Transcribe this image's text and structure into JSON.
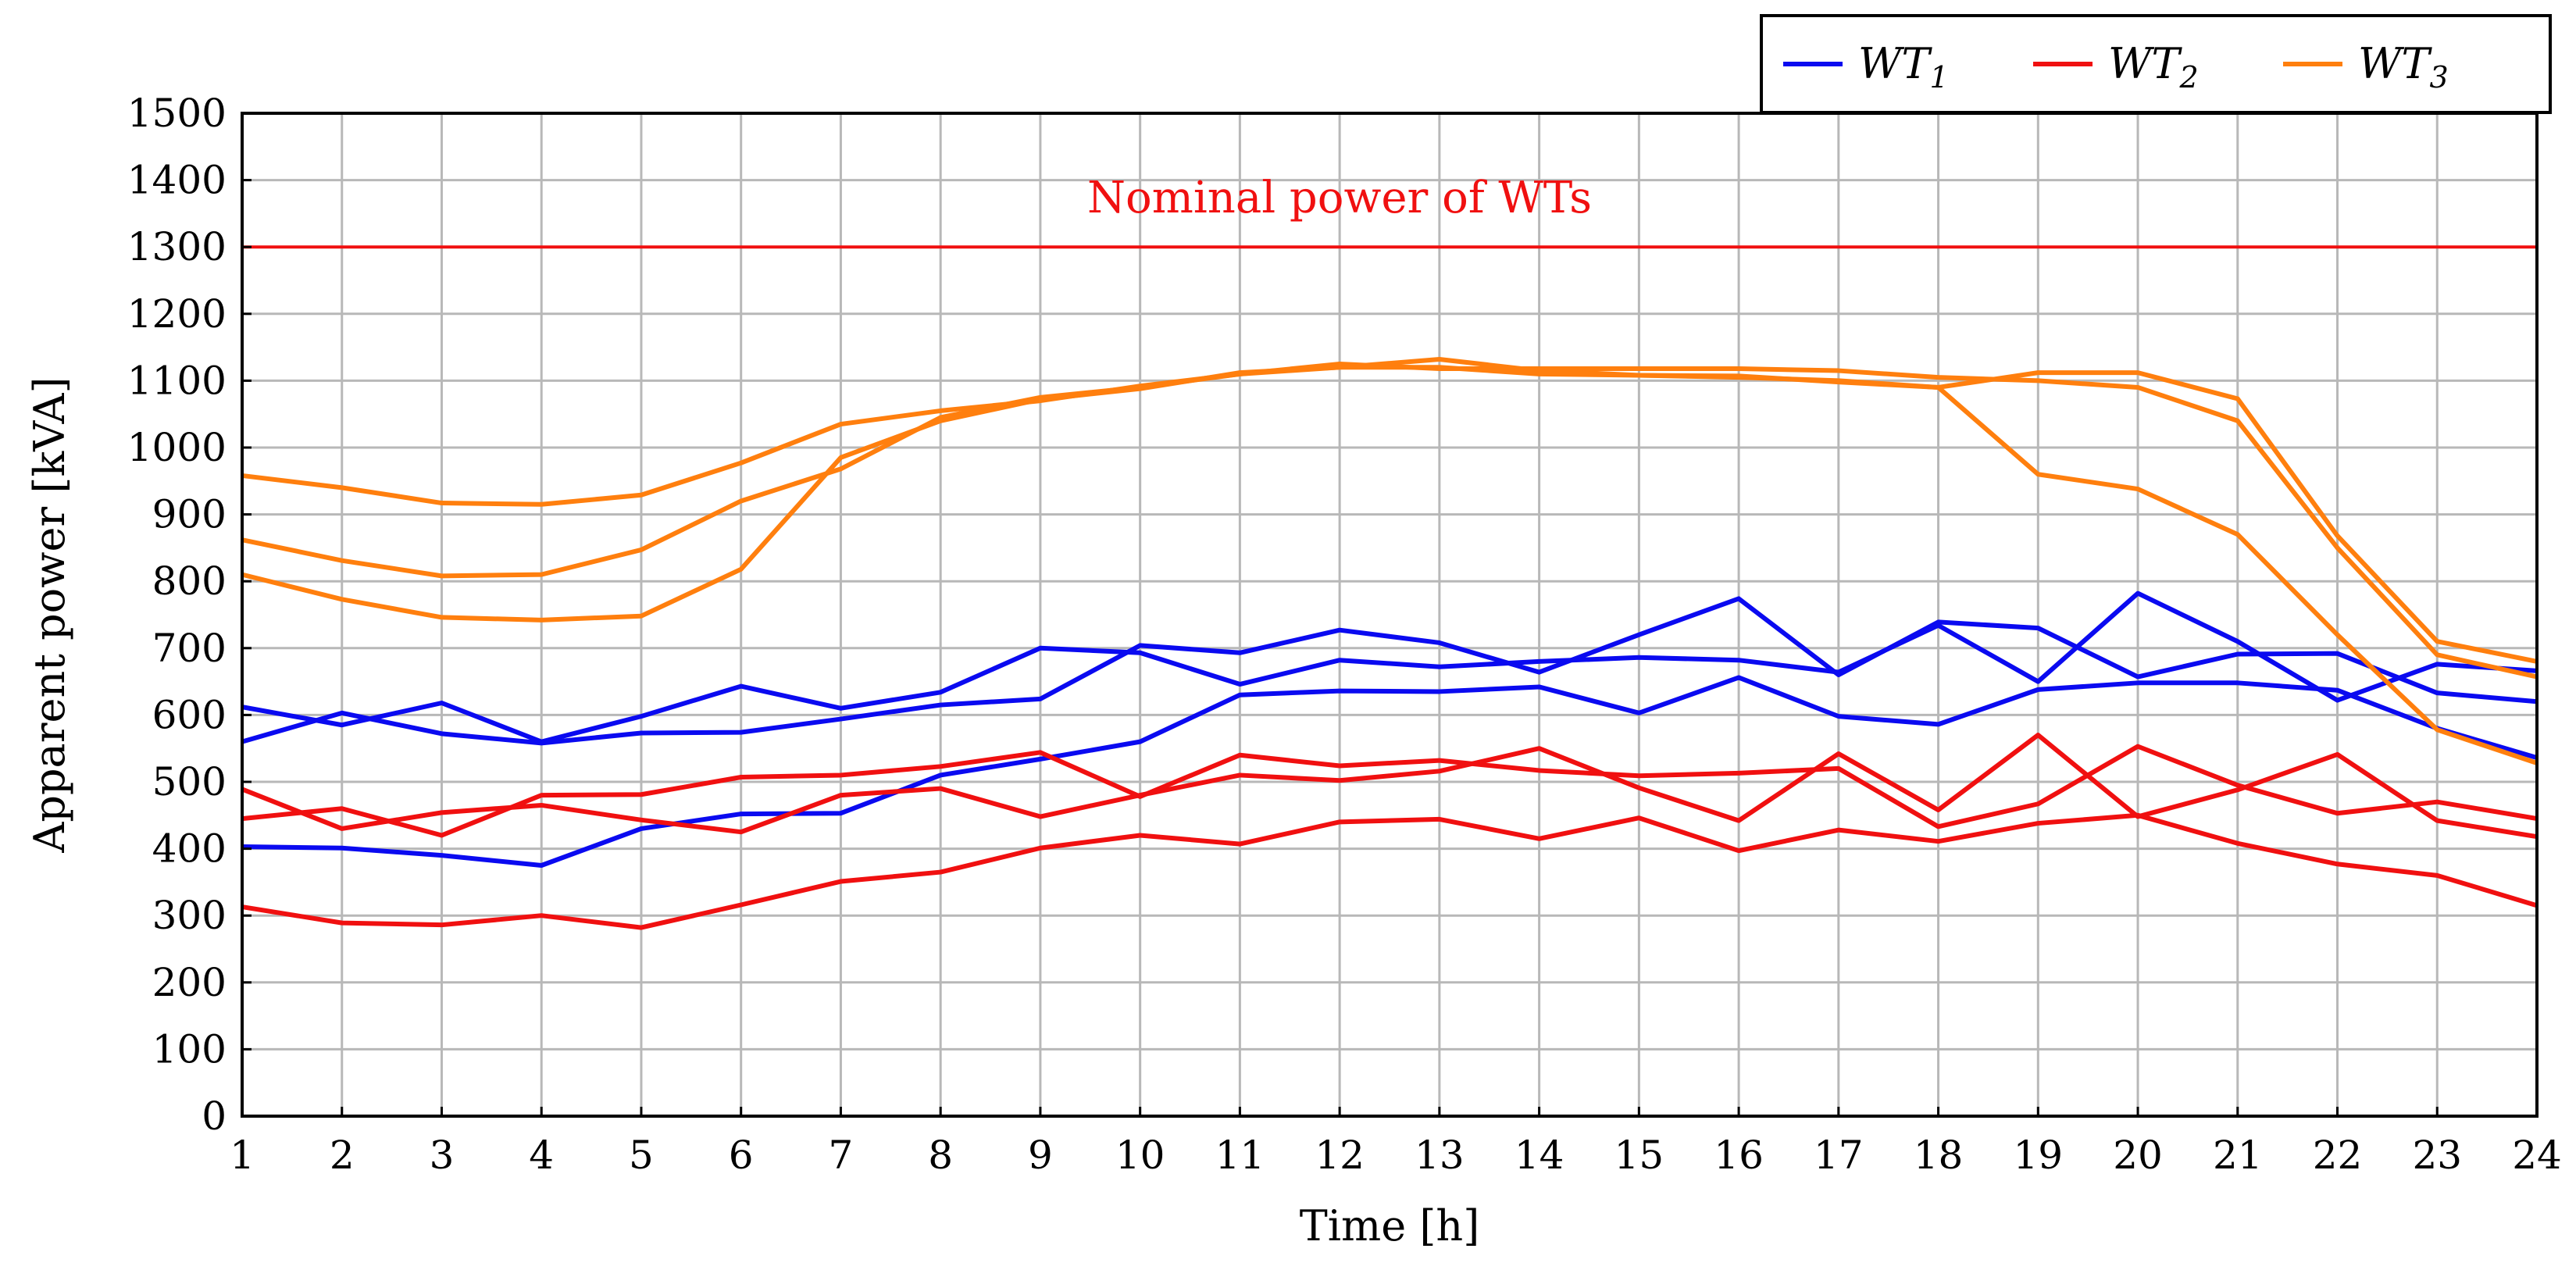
{
  "chart_data": {
    "type": "line",
    "title": "",
    "xlabel": "Time [h]",
    "ylabel": "Apparent power [kVA]",
    "xlim": [
      1,
      24
    ],
    "ylim": [
      0,
      1500
    ],
    "x_ticks": [
      1,
      2,
      3,
      4,
      5,
      6,
      7,
      8,
      9,
      10,
      11,
      12,
      13,
      14,
      15,
      16,
      17,
      18,
      19,
      20,
      21,
      22,
      23,
      24
    ],
    "y_ticks": [
      0,
      100,
      200,
      300,
      400,
      500,
      600,
      700,
      800,
      900,
      1000,
      1100,
      1200,
      1300,
      1400,
      1500
    ],
    "grid": true,
    "legend_position": "top-right, above plot",
    "legend": [
      {
        "base": "WT",
        "sub": "1",
        "color": "#0a0af0"
      },
      {
        "base": "WT",
        "sub": "2",
        "color": "#f01010"
      },
      {
        "base": "WT",
        "sub": "3",
        "color": "#ff7f0e"
      }
    ],
    "reference_line": {
      "y": 1300,
      "label": "Nominal power of WTs",
      "color": "#f01010"
    },
    "x": [
      1,
      2,
      3,
      4,
      5,
      6,
      7,
      8,
      9,
      10,
      11,
      12,
      13,
      14,
      15,
      16,
      17,
      18,
      19,
      20,
      21,
      22,
      23,
      24
    ],
    "series": [
      {
        "group": "WT1",
        "color": "#0a0af0",
        "values": [
          612,
          585,
          618,
          560,
          598,
          643,
          610,
          634,
          700,
          693,
          646,
          682,
          672,
          680,
          686,
          682,
          664,
          734,
          650,
          782,
          710,
          622,
          676,
          666
        ]
      },
      {
        "group": "WT1",
        "color": "#0a0af0",
        "values": [
          560,
          603,
          572,
          558,
          573,
          574,
          594,
          615,
          624,
          704,
          693,
          727,
          708,
          664,
          720,
          774,
          660,
          739,
          730,
          657,
          691,
          692,
          633,
          620
        ]
      },
      {
        "group": "WT1",
        "color": "#0a0af0",
        "values": [
          403,
          401,
          390,
          375,
          430,
          452,
          453,
          510,
          534,
          560,
          630,
          636,
          635,
          642,
          603,
          656,
          598,
          586,
          638,
          648,
          648,
          637,
          580,
          536
        ]
      },
      {
        "group": "WT2",
        "color": "#f01010",
        "values": [
          489,
          430,
          454,
          465,
          443,
          425,
          480,
          490,
          448,
          480,
          510,
          502,
          516,
          550,
          491,
          442,
          542,
          458,
          570,
          448,
          488,
          541,
          442,
          418
        ]
      },
      {
        "group": "WT2",
        "color": "#f01010",
        "values": [
          445,
          460,
          420,
          480,
          481,
          507,
          510,
          523,
          544,
          478,
          540,
          524,
          532,
          517,
          509,
          513,
          520,
          433,
          467,
          553,
          495,
          453,
          470,
          445
        ]
      },
      {
        "group": "WT2",
        "color": "#f01010",
        "values": [
          313,
          289,
          286,
          300,
          282,
          316,
          351,
          365,
          401,
          420,
          407,
          440,
          444,
          415,
          446,
          397,
          428,
          411,
          438,
          450,
          408,
          377,
          360,
          315
        ]
      },
      {
        "group": "WT3",
        "color": "#ff7f0e",
        "values": [
          958,
          940,
          917,
          915,
          929,
          977,
          1035,
          1055,
          1070,
          1092,
          1110,
          1125,
          1118,
          1118,
          1118,
          1118,
          1115,
          1105,
          1100,
          1090,
          1040,
          850,
          690,
          657
        ]
      },
      {
        "group": "WT3",
        "color": "#ff7f0e",
        "values": [
          862,
          831,
          808,
          810,
          847,
          920,
          968,
          1045,
          1075,
          1090,
          1110,
          1120,
          1132,
          1115,
          1108,
          1107,
          1098,
          1090,
          1112,
          1112,
          1073,
          868,
          710,
          680
        ]
      },
      {
        "group": "WT3",
        "color": "#ff7f0e",
        "values": [
          810,
          773,
          746,
          742,
          748,
          818,
          985,
          1040,
          1072,
          1088,
          1112,
          1120,
          1120,
          1110,
          1108,
          1105,
          1100,
          1090,
          960,
          938,
          870,
          720,
          578,
          528
        ]
      }
    ]
  }
}
